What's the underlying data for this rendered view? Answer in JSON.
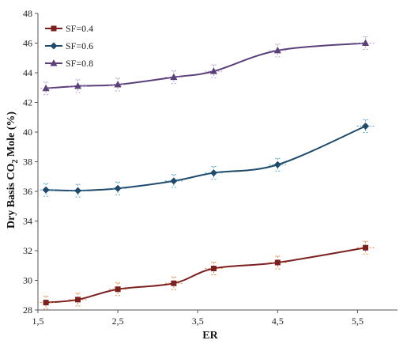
{
  "chart_data": {
    "type": "line",
    "xlabel": "ER",
    "ylabel_parts": [
      "Dry Basis CO",
      "2",
      " Mole (%)"
    ],
    "xlim": [
      1.5,
      6.0
    ],
    "ylim": [
      28,
      48
    ],
    "x_ticks": [
      {
        "value": 1.5,
        "label": "1,5"
      },
      {
        "value": 2.5,
        "label": "2,5"
      },
      {
        "value": 3.5,
        "label": "3,5"
      },
      {
        "value": 4.5,
        "label": "4,5"
      },
      {
        "value": 5.5,
        "label": "5,5"
      }
    ],
    "y_ticks": [
      28,
      30,
      32,
      34,
      36,
      38,
      40,
      42,
      44,
      46,
      48
    ],
    "legend_position": "top-left",
    "grid": false,
    "error_bars": true,
    "series": [
      {
        "name": "SF=0.4",
        "marker": "square",
        "color": "#7b1f1f",
        "err_color": "#e0873c",
        "x": [
          1.6,
          2.0,
          2.5,
          3.2,
          3.7,
          4.5,
          5.6
        ],
        "y": [
          28.5,
          28.7,
          29.4,
          29.8,
          30.8,
          31.2,
          32.2
        ]
      },
      {
        "name": "SF=0.6",
        "marker": "diamond",
        "color": "#1f4a6b",
        "err_color": "#4fa3c7",
        "x": [
          1.6,
          2.0,
          2.5,
          3.2,
          3.7,
          4.5,
          5.6
        ],
        "y": [
          36.1,
          36.05,
          36.2,
          36.7,
          37.25,
          37.8,
          40.4
        ]
      },
      {
        "name": "SF=0.8",
        "marker": "triangle",
        "color": "#5a3f7a",
        "err_color": "#b79bd3",
        "x": [
          1.6,
          2.0,
          2.5,
          3.2,
          3.7,
          4.5,
          5.6
        ],
        "y": [
          42.95,
          43.1,
          43.2,
          43.7,
          44.1,
          45.5,
          46.0
        ]
      }
    ]
  }
}
